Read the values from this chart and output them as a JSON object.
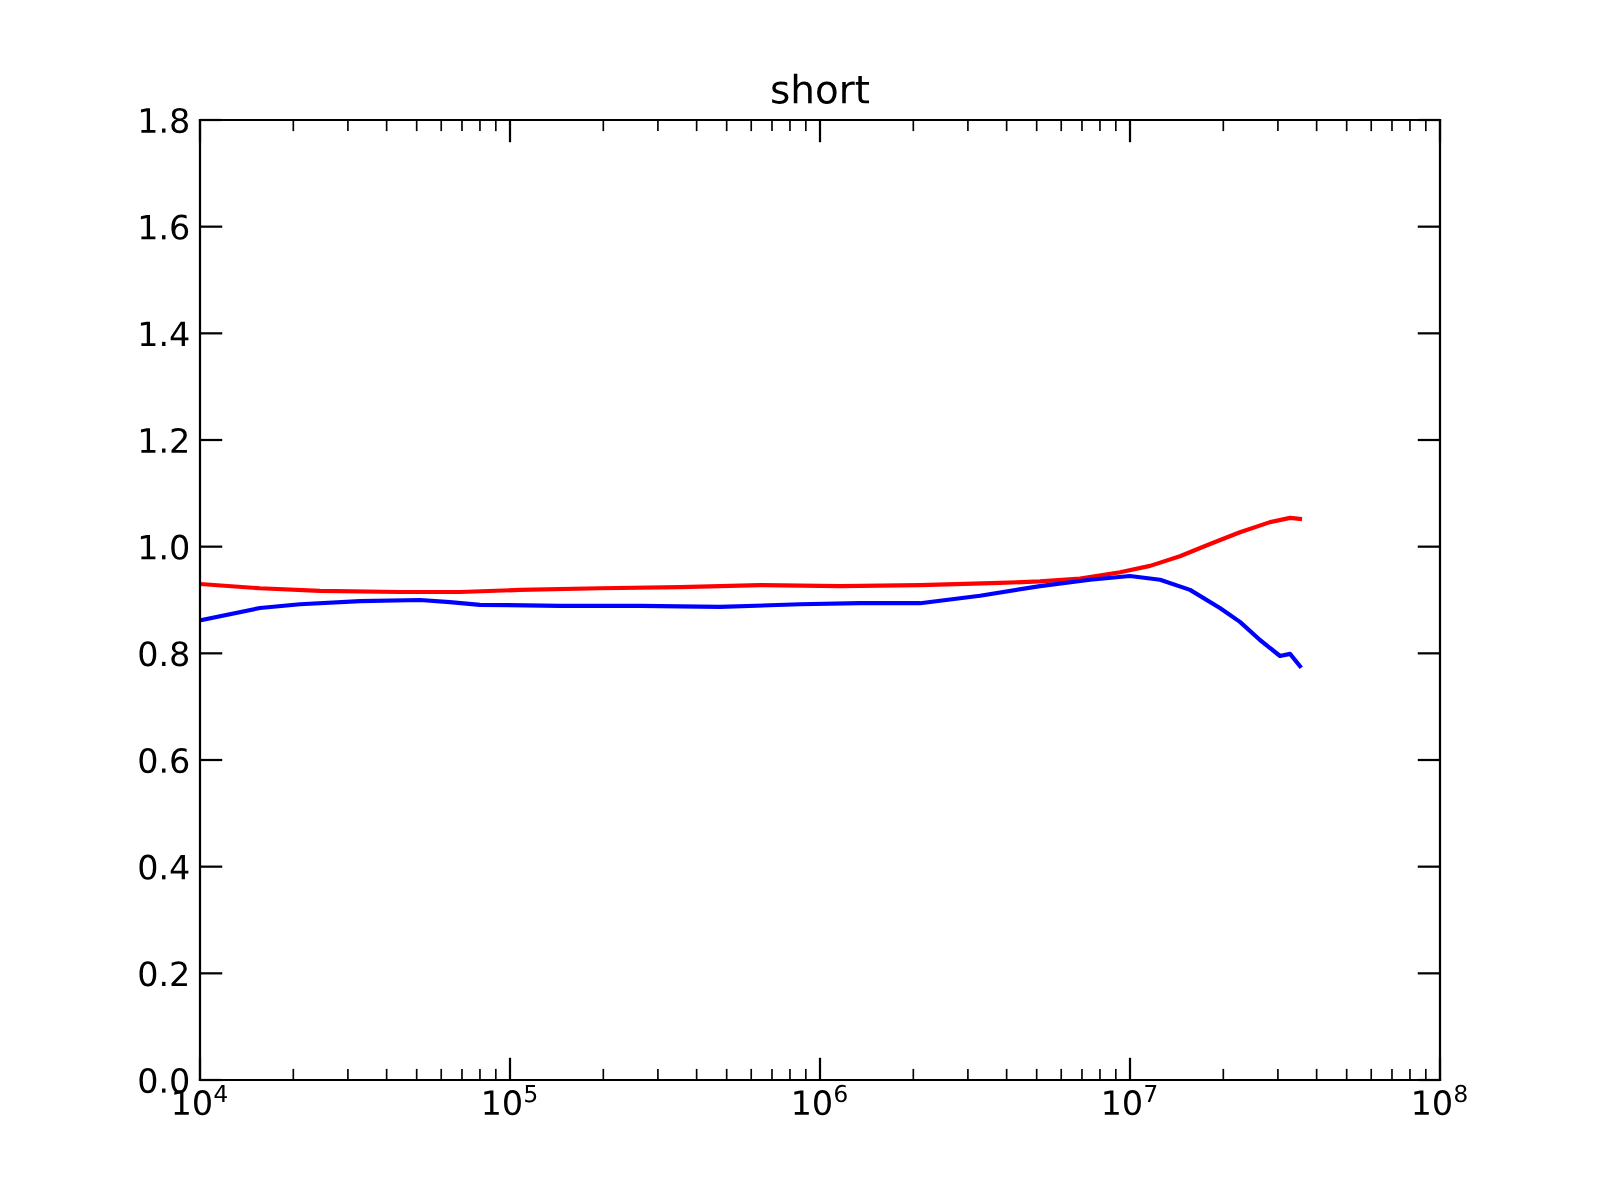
{
  "chart_data": {
    "type": "line",
    "title": "short",
    "log": "x",
    "grid": false,
    "legend": false,
    "marker": "none",
    "line_style": "solid",
    "xlim": [
      10000,
      100000000
    ],
    "xticks": [
      {
        "value": 10000,
        "label": "10$^{4}$"
      },
      {
        "value": 100000,
        "label": "10$^{5}$"
      },
      {
        "value": 1000000,
        "label": "10$^{6}$"
      },
      {
        "value": 10000000,
        "label": "10$^{7}$"
      },
      {
        "value": 100000000,
        "label": "10$^{8}$"
      }
    ],
    "ylim": [
      0,
      1.8
    ],
    "yticks": [
      {
        "value": 0,
        "label": "0.0"
      },
      {
        "value": 0.2,
        "label": "0.2"
      },
      {
        "value": 0.4,
        "label": "0.4"
      },
      {
        "value": 0.6,
        "label": "0.6"
      },
      {
        "value": 0.8,
        "label": "0.8"
      },
      {
        "value": 1.0,
        "label": "1.0"
      },
      {
        "value": 1.2,
        "label": "1.2"
      },
      {
        "value": 1.4,
        "label": "1.4"
      },
      {
        "value": 1.6,
        "label": "1.6"
      },
      {
        "value": 1.8,
        "label": "1.8"
      }
    ],
    "series": [
      {
        "color": "#ff0000",
        "x": [
          10000,
          15610,
          24380,
          44190,
          69000,
          107700,
          195000,
          353400,
          640400,
          1161000,
          2103000,
          3808000,
          5126000,
          6900000,
          9290000,
          11610000,
          14490000,
          18120000,
          22630000,
          28300000,
          32830000,
          35340000
        ],
        "values": [
          0.93,
          0.922,
          0.917,
          0.915,
          0.915,
          0.919,
          0.922,
          0.924,
          0.928,
          0.926,
          0.928,
          0.932,
          0.935,
          0.94,
          0.952,
          0.964,
          0.982,
          1.005,
          1.027,
          1.046,
          1.054,
          1.052
        ]
      },
      {
        "color": "#0000ff",
        "x": [
          10000,
          15610,
          21020,
          32830,
          51260,
          63990,
          80000,
          145000,
          262600,
          475700,
          862100,
          1346000,
          2103000,
          3283000,
          5126000,
          7430000,
          10000000,
          12500000,
          15620000,
          19500000,
          22630000,
          26260000,
          30480000,
          32830000,
          35340000
        ],
        "values": [
          0.862,
          0.885,
          0.892,
          0.898,
          0.9,
          0.896,
          0.891,
          0.889,
          0.889,
          0.887,
          0.892,
          0.894,
          0.894,
          0.908,
          0.926,
          0.938,
          0.945,
          0.938,
          0.919,
          0.885,
          0.859,
          0.825,
          0.795,
          0.799,
          0.776
        ]
      }
    ]
  }
}
